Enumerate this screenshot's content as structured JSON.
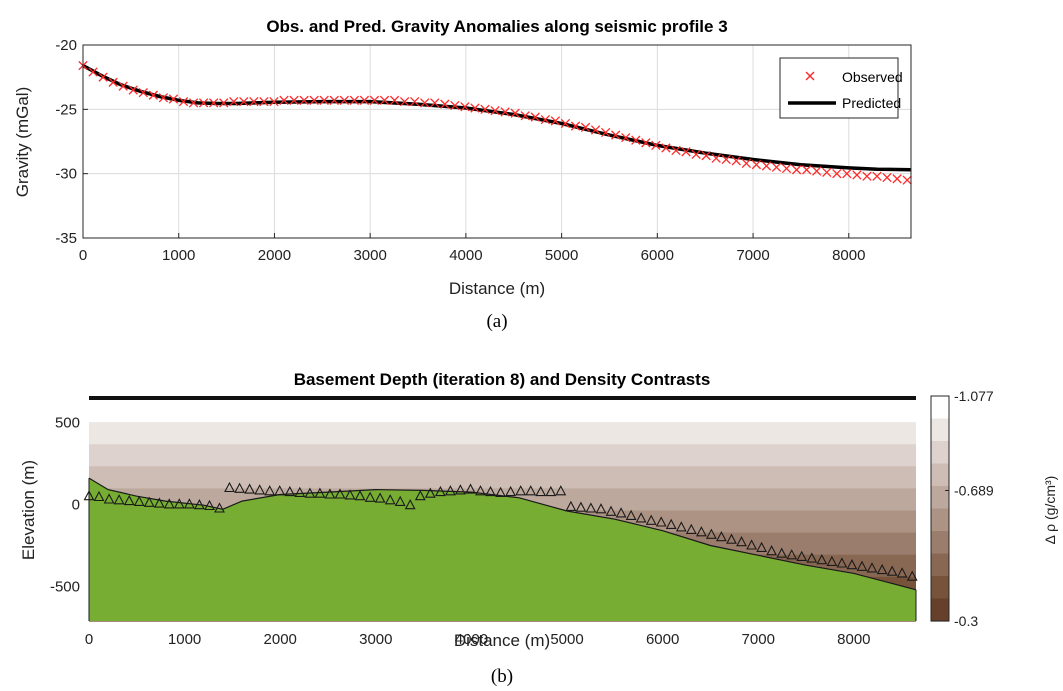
{
  "colors": {
    "observed": "#ff2a2a",
    "predicted": "#000000",
    "basement": "#76ad32",
    "grid": "#dcdcdc"
  },
  "captions": {
    "a": "(a)",
    "b": "(b)"
  },
  "chart_data": [
    {
      "type": "line",
      "title": "Obs. and Pred. Gravity Anomalies along seismic profile 3",
      "xlabel": "Distance (m)",
      "ylabel": "Gravity (mGal)",
      "xlim": [
        0,
        8650
      ],
      "ylim": [
        -35,
        -20
      ],
      "xticks": [
        0,
        1000,
        2000,
        3000,
        4000,
        5000,
        6000,
        7000,
        8000
      ],
      "yticks": [
        -20,
        -25,
        -30,
        -35
      ],
      "grid": true,
      "legend": {
        "position": "top-right",
        "entries": [
          "Observed",
          "Predicted"
        ]
      },
      "series": [
        {
          "name": "Observed",
          "marker": "x",
          "x": [
            0,
            105,
            210,
            315,
            420,
            525,
            630,
            735,
            840,
            945,
            1050,
            1155,
            1260,
            1365,
            1470,
            1575,
            1680,
            1785,
            1890,
            1995,
            2100,
            2205,
            2310,
            2415,
            2520,
            2625,
            2730,
            2835,
            2940,
            3045,
            3150,
            3255,
            3360,
            3465,
            3570,
            3675,
            3780,
            3885,
            3990,
            4095,
            4200,
            4305,
            4410,
            4515,
            4620,
            4725,
            4830,
            4935,
            5040,
            5145,
            5250,
            5355,
            5460,
            5565,
            5670,
            5775,
            5880,
            5985,
            6090,
            6195,
            6300,
            6405,
            6510,
            6615,
            6720,
            6825,
            6930,
            7035,
            7140,
            7245,
            7350,
            7455,
            7560,
            7665,
            7770,
            7875,
            7980,
            8085,
            8190,
            8295,
            8400,
            8505,
            8610
          ],
          "y": [
            -21.6,
            -22.1,
            -22.5,
            -22.9,
            -23.2,
            -23.5,
            -23.7,
            -23.9,
            -24.1,
            -24.2,
            -24.4,
            -24.5,
            -24.5,
            -24.5,
            -24.5,
            -24.4,
            -24.4,
            -24.4,
            -24.4,
            -24.4,
            -24.3,
            -24.3,
            -24.3,
            -24.3,
            -24.3,
            -24.3,
            -24.3,
            -24.3,
            -24.3,
            -24.3,
            -24.3,
            -24.3,
            -24.4,
            -24.4,
            -24.5,
            -24.5,
            -24.6,
            -24.7,
            -24.8,
            -24.9,
            -25.0,
            -25.1,
            -25.2,
            -25.3,
            -25.5,
            -25.6,
            -25.8,
            -25.9,
            -26.1,
            -26.3,
            -26.4,
            -26.6,
            -26.8,
            -27.0,
            -27.2,
            -27.4,
            -27.6,
            -27.8,
            -28.0,
            -28.2,
            -28.3,
            -28.5,
            -28.6,
            -28.8,
            -28.9,
            -29.0,
            -29.2,
            -29.3,
            -29.4,
            -29.5,
            -29.6,
            -29.7,
            -29.7,
            -29.8,
            -29.9,
            -30.0,
            -30.0,
            -30.1,
            -30.2,
            -30.2,
            -30.3,
            -30.4,
            -30.5
          ]
        },
        {
          "name": "Predicted",
          "x": [
            0,
            200,
            400,
            600,
            800,
            1000,
            1200,
            1400,
            1600,
            1800,
            2000,
            2500,
            3000,
            3500,
            4000,
            4500,
            5000,
            5500,
            6000,
            6500,
            7000,
            7500,
            8000,
            8300,
            8650
          ],
          "y": [
            -21.6,
            -22.4,
            -23.1,
            -23.6,
            -24.0,
            -24.3,
            -24.5,
            -24.55,
            -24.55,
            -24.5,
            -24.45,
            -24.4,
            -24.4,
            -24.6,
            -24.9,
            -25.4,
            -26.1,
            -27.0,
            -27.8,
            -28.4,
            -28.9,
            -29.3,
            -29.55,
            -29.65,
            -29.7
          ]
        }
      ]
    },
    {
      "type": "area",
      "title": "Basement Depth (iteration 8) and Density Contrasts",
      "xlabel": "Distance (m)",
      "ylabel": "Elevation (m)",
      "xlim": [
        0,
        8650
      ],
      "ylim": [
        -710,
        660
      ],
      "xticks": [
        0,
        1000,
        2000,
        3000,
        4000,
        5000,
        6000,
        7000,
        8000
      ],
      "yticks": [
        500,
        0,
        -500
      ],
      "colorbar": {
        "label": "Δ ρ (g/cm³)",
        "ticks": [
          "-1.077",
          "-0.689",
          "-0.3"
        ],
        "colors": [
          "#ffffff",
          "#ede7e4",
          "#ddd2cd",
          "#cdbdb5",
          "#bca89d",
          "#ac9384",
          "#9a7d6c",
          "#896853",
          "#77533c",
          "#66402a"
        ]
      },
      "series": [
        {
          "name": "basement",
          "x": [
            0,
            200,
            500,
            800,
            1200,
            1400,
            1600,
            2000,
            2500,
            3000,
            3500,
            4000,
            4500,
            5000,
            5500,
            6000,
            6500,
            7000,
            7500,
            8000,
            8650
          ],
          "y": [
            160,
            90,
            50,
            20,
            -5,
            -30,
            20,
            60,
            75,
            90,
            85,
            75,
            40,
            -40,
            -90,
            -160,
            -250,
            -310,
            -370,
            -420,
            -520
          ]
        },
        {
          "name": "stations",
          "marker": "triangle",
          "x": [
            0,
            105,
            210,
            315,
            420,
            525,
            630,
            735,
            840,
            945,
            1050,
            1155,
            1260,
            1365,
            1470,
            1575,
            1680,
            1785,
            1890,
            1995,
            2100,
            2205,
            2310,
            2415,
            2520,
            2625,
            2730,
            2835,
            2940,
            3045,
            3150,
            3255,
            3360,
            3465,
            3570,
            3675,
            3780,
            3885,
            3990,
            4095,
            4200,
            4305,
            4410,
            4515,
            4620,
            4725,
            4830,
            4935,
            5040,
            5145,
            5250,
            5355,
            5460,
            5565,
            5670,
            5775,
            5880,
            5985,
            6090,
            6195,
            6300,
            6405,
            6510,
            6615,
            6720,
            6825,
            6930,
            7035,
            7140,
            7245,
            7350,
            7455,
            7560,
            7665,
            7770,
            7875,
            7980,
            8085,
            8190,
            8295,
            8400,
            8505,
            8610
          ],
          "y": [
            50,
            45,
            30,
            25,
            20,
            15,
            10,
            5,
            0,
            0,
            0,
            -5,
            -10,
            -25,
            100,
            95,
            90,
            85,
            80,
            80,
            75,
            70,
            65,
            65,
            60,
            60,
            55,
            50,
            40,
            35,
            25,
            15,
            -5,
            50,
            65,
            75,
            80,
            85,
            90,
            80,
            75,
            70,
            75,
            80,
            80,
            75,
            75,
            80,
            -15,
            -20,
            -25,
            -30,
            -45,
            -55,
            -70,
            -85,
            -100,
            -110,
            -125,
            -140,
            -155,
            -170,
            -185,
            -200,
            -215,
            -230,
            -250,
            -265,
            -285,
            -300,
            -310,
            -320,
            -330,
            -340,
            -350,
            -360,
            -370,
            -380,
            -390,
            -400,
            -410,
            -420,
            -440
          ]
        }
      ]
    }
  ]
}
